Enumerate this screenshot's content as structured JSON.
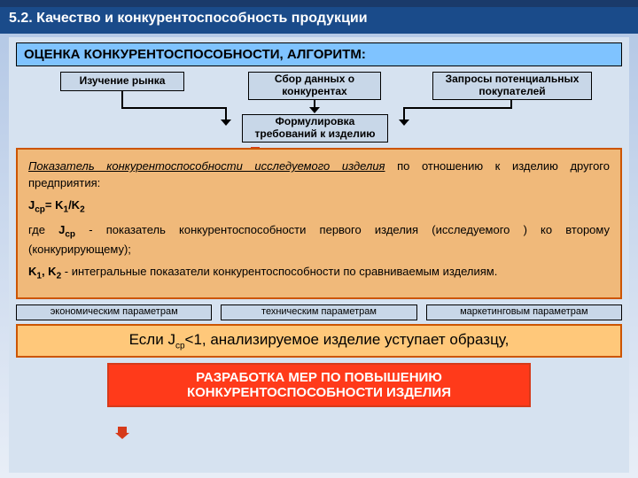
{
  "colors": {
    "topbar": "#1a3a6a",
    "header_bg": "#1a4b8a",
    "gradient_top": "#b5c9e6",
    "gradient_bot": "#e8eef7",
    "inner_bg": "#d6e2f0",
    "title_bg": "#7fc3ff",
    "box_bg": "#c8d7e8",
    "info_bg": "#f0b97a",
    "info_border": "#cc5500",
    "red": "#d63a1a",
    "final_bg": "#ff3a1a",
    "conc_bg": "#ffc87a"
  },
  "fonts": {
    "header": 16,
    "title": 15,
    "flowbox": 12,
    "info": 13,
    "conc": 17,
    "final": 15
  },
  "header": "5.2. Качество и конкурентоспособность продукции",
  "title": "ОЦЕНКА КОНКУРЕНТОСПОСОБНОСТИ,  АЛГОРИТМ:",
  "flow": {
    "b1": "Изучение рынка",
    "b2": "Сбор данных о конкурентах",
    "b3": "Запросы потенциальных покупателей",
    "b4": "Формулировка требований к изделию"
  },
  "info": {
    "p1a": "Показатель конкурентоспособности исследуемого изделия",
    "p1b": " по отношению к изделию другого предприятия:",
    "p2": "Jср= K1/K2",
    "p3a": "где  ",
    "p3b": "Jср",
    "p3c": " - показатель конкурентоспособности первого изделия (исследуемого ) ко второму (конкурирующему);",
    "p4": "K1, K2 - интегральные показатели конкурентоспособности по сравниваемым изделиям."
  },
  "mid": {
    "m1": "экономическим параметрам",
    "m2": "техническим параметрам",
    "m3": "маркетинговым параметрам"
  },
  "conc": "Если Jср<1, анализируемое изделие уступает образцу,",
  "final": "РАЗРАБОТКА МЕР ПО ПОВЫШЕНИЮ КОНКУРЕНТОСПОСОБНОСТИ ИЗДЕЛИЯ"
}
